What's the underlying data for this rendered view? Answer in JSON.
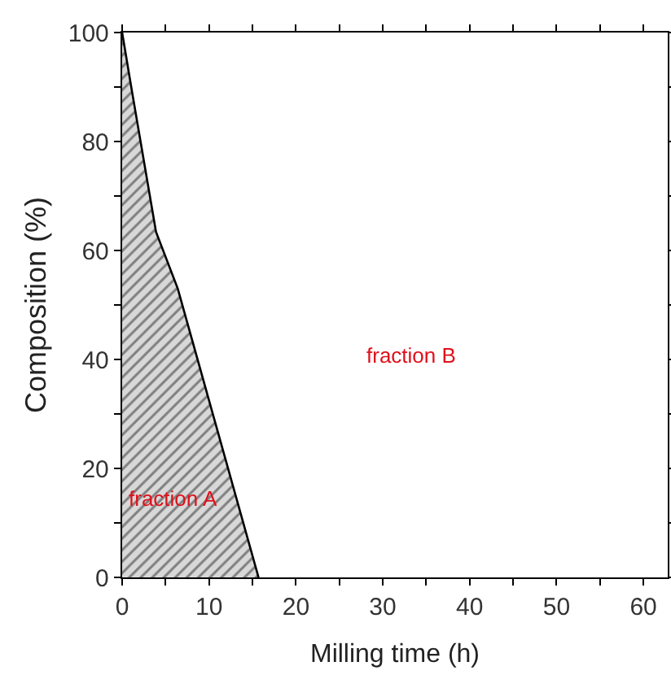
{
  "chart_data": {
    "type": "area",
    "xlabel": "Milling time (h)",
    "ylabel": "Composition (%)",
    "x": [
      0,
      1.1,
      3.9,
      6.4,
      15.7
    ],
    "series": [
      {
        "color": "#808080",
        "values": [
          100,
          89.5,
          63.4,
          53,
          0
        ]
      }
    ],
    "xlim": [
      0,
      62.8
    ],
    "ylim": [
      0,
      100
    ],
    "xticks": [
      0,
      {
        "value": 5,
        "label": null
      },
      10,
      {
        "value": 15,
        "label": null
      },
      20,
      {
        "value": 25,
        "label": null
      },
      30,
      {
        "value": 35,
        "label": null
      },
      40,
      {
        "value": 45,
        "label": null
      },
      50,
      {
        "value": 55,
        "label": null
      },
      60
    ],
    "yticks": [
      0,
      {
        "value": 10,
        "label": null
      },
      20,
      {
        "value": 30,
        "label": null
      },
      40,
      {
        "value": 50,
        "label": null
      },
      60,
      {
        "value": 70,
        "label": null
      },
      80,
      {
        "value": 90,
        "label": null
      },
      100
    ],
    "annotations": [
      "fraction A",
      "fraction B"
    ],
    "grid": false,
    "legend": false
  }
}
